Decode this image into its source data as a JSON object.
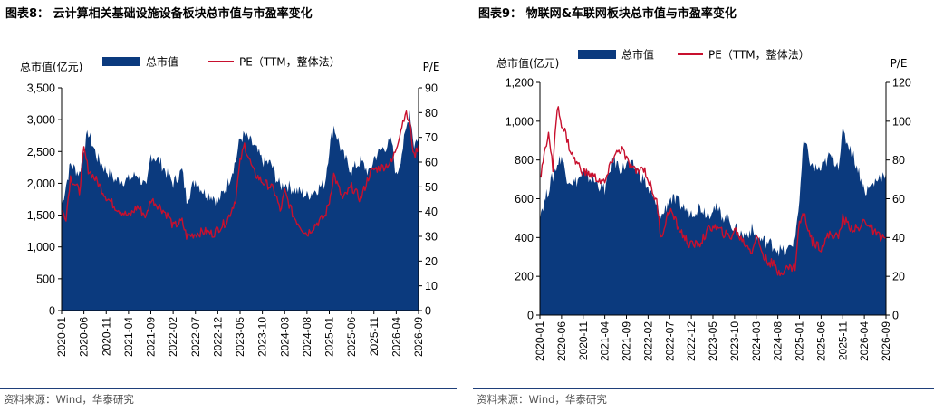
{
  "chart_data": [
    {
      "type": "area",
      "title": "图表8：  云计算相关基础设施设备板块总市值与市盈率变化",
      "source": "资料来源：Wind，华泰研究",
      "ylabel_left": "总市值(亿元)",
      "ylabel_right": "P/E",
      "ylim_left": [
        0,
        3500
      ],
      "ylim_right": [
        0,
        90
      ],
      "yticks_left": [
        "0",
        "500",
        "1,000",
        "1,500",
        "2,000",
        "2,500",
        "3,000",
        "3,500"
      ],
      "yticks_right": [
        "0",
        "10",
        "20",
        "30",
        "40",
        "50",
        "60",
        "70",
        "80",
        "90"
      ],
      "x_ticks": [
        "2020-01",
        "2020-06",
        "2020-11",
        "2021-04",
        "2021-09",
        "2022-02",
        "2022-07",
        "2022-12",
        "2023-05",
        "2023-10",
        "2024-03",
        "2024-08",
        "2025-01",
        "2025-06",
        "2025-11",
        "2026-04",
        "2026-09"
      ],
      "legend": "top-left",
      "series": [
        {
          "name": "总市值",
          "axis": "left",
          "type": "area",
          "color": "#0b3a7e",
          "x": [
            "2020-01",
            "2020-03",
            "2020-05",
            "2020-06",
            "2020-07",
            "2020-09",
            "2020-11",
            "2021-01",
            "2021-04",
            "2021-06",
            "2021-08",
            "2021-09",
            "2021-11",
            "2022-01",
            "2022-02",
            "2022-04",
            "2022-05",
            "2022-07",
            "2022-09",
            "2022-11",
            "2022-12",
            "2023-02",
            "2023-04",
            "2023-05",
            "2023-06",
            "2023-08",
            "2023-10",
            "2023-12",
            "2024-01",
            "2024-02",
            "2024-03",
            "2024-05",
            "2024-07",
            "2024-08",
            "2024-10",
            "2024-12",
            "2025-01",
            "2025-02",
            "2025-04",
            "2025-06",
            "2025-08",
            "2025-10",
            "2025-11",
            "2026-01",
            "2026-03",
            "2026-04",
            "2026-05",
            "2026-06",
            "2026-07",
            "2026-08",
            "2026-09"
          ],
          "values": [
            1650,
            2300,
            2150,
            2550,
            2800,
            2400,
            2200,
            2050,
            2050,
            2150,
            1900,
            2450,
            2350,
            2100,
            2000,
            2200,
            1750,
            2050,
            1850,
            1800,
            1700,
            1950,
            2350,
            2700,
            2750,
            2600,
            2350,
            2300,
            2100,
            1950,
            2000,
            1900,
            1850,
            1800,
            1900,
            2000,
            2550,
            2900,
            2450,
            2200,
            2350,
            2150,
            2400,
            2550,
            2650,
            2100,
            2400,
            2750,
            3150,
            2600,
            2750
          ]
        },
        {
          "name": "PE（TTM，整体法）",
          "axis": "right",
          "type": "line",
          "color": "#c8102e",
          "x": [
            "2020-01",
            "2020-02",
            "2020-03",
            "2020-05",
            "2020-06",
            "2020-07",
            "2020-09",
            "2020-11",
            "2021-01",
            "2021-04",
            "2021-06",
            "2021-08",
            "2021-09",
            "2021-11",
            "2022-01",
            "2022-02",
            "2022-04",
            "2022-05",
            "2022-07",
            "2022-09",
            "2022-11",
            "2022-12",
            "2023-02",
            "2023-04",
            "2023-05",
            "2023-06",
            "2023-08",
            "2023-10",
            "2023-12",
            "2024-01",
            "2024-02",
            "2024-03",
            "2024-05",
            "2024-07",
            "2024-08",
            "2024-10",
            "2024-12",
            "2025-01",
            "2025-02",
            "2025-04",
            "2025-06",
            "2025-08",
            "2025-10",
            "2025-11",
            "2026-01",
            "2026-03",
            "2026-04",
            "2026-05",
            "2026-06",
            "2026-07",
            "2026-08",
            "2026-09"
          ],
          "values": [
            40,
            38,
            54,
            48,
            65,
            57,
            52,
            46,
            42,
            38,
            42,
            38,
            45,
            42,
            38,
            34,
            36,
            30,
            31,
            32,
            31,
            33,
            36,
            45,
            60,
            67,
            56,
            52,
            50,
            47,
            40,
            48,
            38,
            33,
            31,
            35,
            38,
            44,
            55,
            45,
            50,
            45,
            55,
            57,
            58,
            60,
            66,
            73,
            80,
            76,
            62,
            67
          ]
        }
      ]
    },
    {
      "type": "area",
      "title": "图表9：  物联网&车联网板块总市值与市盈率变化",
      "source": "资料来源：Wind，华泰研究",
      "ylabel_left": "总市值(亿元)",
      "ylabel_right": "P/E",
      "ylim_left": [
        0,
        1200
      ],
      "ylim_right": [
        0,
        120
      ],
      "yticks_left": [
        "0",
        "200",
        "400",
        "600",
        "800",
        "1,000",
        "1,200"
      ],
      "yticks_right": [
        "0",
        "20",
        "40",
        "60",
        "80",
        "100",
        "120"
      ],
      "x_ticks": [
        "2020-01",
        "2020-06",
        "2020-11",
        "2021-04",
        "2021-09",
        "2022-02",
        "2022-07",
        "2022-12",
        "2023-05",
        "2023-10",
        "2024-03",
        "2024-08",
        "2025-01",
        "2025-06",
        "2025-11",
        "2026-04",
        "2026-09"
      ],
      "legend": "top-left",
      "series": [
        {
          "name": "总市值",
          "axis": "left",
          "type": "area",
          "color": "#0b3a7e",
          "x": [
            "2020-01",
            "2020-03",
            "2020-05",
            "2020-06",
            "2020-07",
            "2020-09",
            "2020-11",
            "2021-01",
            "2021-04",
            "2021-06",
            "2021-08",
            "2021-09",
            "2021-11",
            "2022-01",
            "2022-02",
            "2022-04",
            "2022-05",
            "2022-07",
            "2022-09",
            "2022-11",
            "2022-12",
            "2023-02",
            "2023-04",
            "2023-05",
            "2023-07",
            "2023-09",
            "2023-10",
            "2023-12",
            "2024-02",
            "2024-03",
            "2024-05",
            "2024-07",
            "2024-08",
            "2024-10",
            "2024-12",
            "2025-01",
            "2025-02",
            "2025-04",
            "2025-06",
            "2025-08",
            "2025-10",
            "2025-11",
            "2026-01",
            "2026-03",
            "2026-04",
            "2026-05",
            "2026-07",
            "2026-09"
          ],
          "values": [
            520,
            650,
            780,
            820,
            720,
            680,
            730,
            700,
            650,
            800,
            750,
            780,
            760,
            700,
            650,
            560,
            500,
            600,
            580,
            540,
            530,
            560,
            520,
            560,
            520,
            480,
            450,
            410,
            440,
            400,
            380,
            360,
            340,
            320,
            400,
            600,
            900,
            760,
            750,
            820,
            780,
            940,
            850,
            720,
            640,
            650,
            700,
            740
          ]
        },
        {
          "name": "PE（TTM，整体法）",
          "axis": "right",
          "type": "line",
          "color": "#c8102e",
          "x": [
            "2020-01",
            "2020-02",
            "2020-03",
            "2020-04",
            "2020-05",
            "2020-06",
            "2020-07",
            "2020-08",
            "2020-09",
            "2020-11",
            "2021-01",
            "2021-04",
            "2021-06",
            "2021-08",
            "2021-09",
            "2021-11",
            "2022-01",
            "2022-02",
            "2022-04",
            "2022-05",
            "2022-07",
            "2022-09",
            "2022-11",
            "2022-12",
            "2023-02",
            "2023-04",
            "2023-05",
            "2023-07",
            "2023-09",
            "2023-10",
            "2023-12",
            "2024-02",
            "2024-03",
            "2024-05",
            "2024-07",
            "2024-08",
            "2024-10",
            "2024-12",
            "2025-01",
            "2025-02",
            "2025-04",
            "2025-06",
            "2025-08",
            "2025-10",
            "2025-11",
            "2026-01",
            "2026-03",
            "2026-04",
            "2026-05",
            "2026-07",
            "2026-09"
          ],
          "values": [
            70,
            82,
            95,
            75,
            108,
            99,
            93,
            85,
            80,
            74,
            72,
            68,
            82,
            86,
            80,
            74,
            76,
            70,
            58,
            40,
            55,
            45,
            38,
            36,
            37,
            44,
            46,
            43,
            40,
            44,
            38,
            33,
            41,
            29,
            26,
            22,
            24,
            25,
            48,
            52,
            38,
            35,
            42,
            40,
            50,
            45,
            44,
            50,
            46,
            41,
            40
          ]
        }
      ]
    }
  ]
}
